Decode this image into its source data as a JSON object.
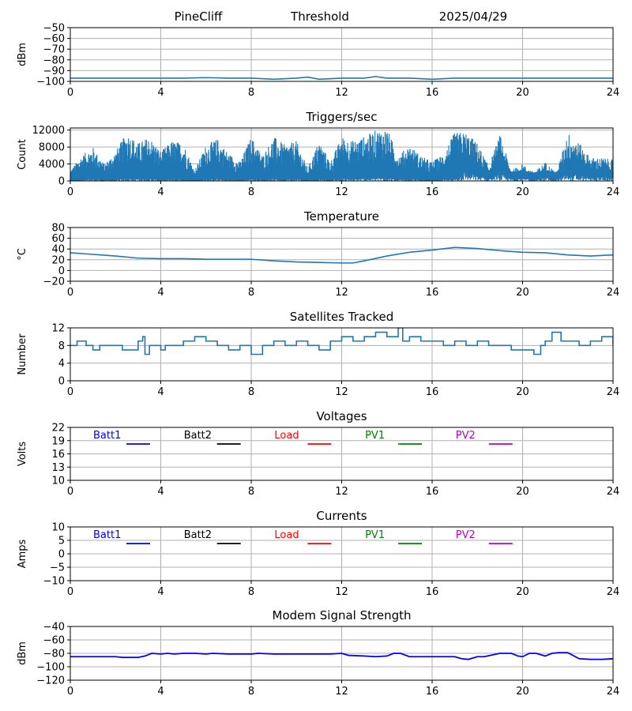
{
  "header": {
    "station": "PineCliff",
    "mode": "Threshold",
    "date": "2025/04/29"
  },
  "colors": {
    "line_default": "#1f77b4",
    "batt1": "#0000ff",
    "batt2": "#000000",
    "load": "#ff0000",
    "pv1": "#008000",
    "pv2": "#bf00bf",
    "modem": "#0000ff",
    "grid": "#b0b0b0"
  },
  "chart_data": [
    {
      "id": "threshold",
      "type": "line",
      "title": "",
      "xlabel": "",
      "ylabel": "dBm",
      "xlim": [
        0,
        24
      ],
      "ylim": [
        -100,
        -50
      ],
      "yticks": [
        -50,
        -60,
        -70,
        -80,
        -90,
        -100
      ],
      "xticks": [
        0,
        4,
        8,
        12,
        16,
        20,
        24
      ],
      "grid": true,
      "series": [
        {
          "color": "#1f77b4",
          "x": [
            0,
            1,
            2,
            3,
            4,
            5,
            6,
            7,
            8,
            9,
            10,
            10.5,
            11,
            12,
            13,
            13.5,
            14,
            15,
            16,
            17,
            18,
            19,
            20,
            21,
            22,
            23,
            24
          ],
          "y": [
            -97,
            -97,
            -97,
            -97,
            -97,
            -97,
            -96.5,
            -97,
            -97,
            -98,
            -97,
            -96,
            -98,
            -97,
            -97,
            -95.5,
            -97,
            -97,
            -98,
            -97,
            -97,
            -97,
            -97,
            -97,
            -97,
            -97,
            -97
          ]
        }
      ]
    },
    {
      "id": "triggers",
      "type": "line",
      "title": "Triggers/sec",
      "xlabel": "",
      "ylabel": "Count",
      "xlim": [
        0,
        24
      ],
      "ylim": [
        0,
        12500
      ],
      "yticks": [
        0,
        4000,
        8000,
        12000
      ],
      "xticks": [
        0,
        4,
        8,
        12,
        16,
        20,
        24
      ],
      "grid": true,
      "series": [
        {
          "color": "#1f77b4",
          "x": [
            0,
            0.5,
            1,
            1.5,
            2,
            2.5,
            3,
            3.5,
            4,
            4.5,
            5,
            5.5,
            6,
            6.5,
            7,
            7.5,
            8,
            8.5,
            9,
            9.5,
            10,
            10.5,
            11,
            11.5,
            12,
            12.5,
            13,
            13.5,
            14,
            14.5,
            15,
            15.5,
            16,
            16.5,
            17,
            17.5,
            18,
            18.5,
            19,
            19.5,
            20,
            20.5,
            21,
            21.5,
            22,
            22.5,
            23,
            23.5,
            24
          ],
          "y": [
            2500,
            6000,
            8000,
            4000,
            7000,
            11500,
            9000,
            10500,
            7000,
            9500,
            9000,
            2500,
            8500,
            10000,
            6500,
            4500,
            10500,
            6000,
            10500,
            8500,
            9500,
            3000,
            9500,
            4500,
            10500,
            9500,
            10500,
            12000,
            12500,
            6000,
            8500,
            6000,
            4500,
            6500,
            11500,
            11500,
            9000,
            3500,
            11000,
            2500,
            4000,
            2000,
            4500,
            2000,
            11500,
            9000,
            5500,
            5500,
            5000
          ],
          "baseline": [
            0,
            200,
            500,
            200,
            300,
            800,
            600,
            500,
            300,
            400,
            300,
            100,
            400,
            500,
            300,
            200,
            600,
            300,
            600,
            400,
            500,
            200,
            500,
            200,
            800,
            500,
            700,
            900,
            800,
            300,
            500,
            300,
            200,
            400,
            500,
            2500,
            1500,
            800,
            2000,
            500,
            800,
            300,
            900,
            400,
            2000,
            1500,
            1000,
            1200,
            1000
          ]
        }
      ]
    },
    {
      "id": "temperature",
      "type": "line",
      "title": "Temperature",
      "xlabel": "",
      "ylabel": "°C",
      "xlim": [
        0,
        24
      ],
      "ylim": [
        -20,
        80
      ],
      "yticks": [
        -20,
        0,
        20,
        40,
        60,
        80
      ],
      "xticks": [
        0,
        4,
        8,
        12,
        16,
        20,
        24
      ],
      "grid": true,
      "series": [
        {
          "color": "#1f77b4",
          "x": [
            0,
            1,
            2,
            3,
            4,
            5,
            6,
            7,
            8,
            9,
            10,
            11,
            12,
            12.5,
            13,
            14,
            15,
            16,
            17,
            18,
            19,
            20,
            21,
            22,
            23,
            24
          ],
          "y": [
            33,
            30,
            27,
            23,
            22,
            22,
            21,
            21,
            21,
            18,
            16,
            15,
            14,
            14,
            18,
            27,
            34,
            38,
            43,
            41,
            37,
            34,
            33,
            29,
            27,
            29
          ]
        }
      ]
    },
    {
      "id": "satellites",
      "type": "line",
      "title": "Satellites Tracked",
      "xlabel": "",
      "ylabel": "Number",
      "xlim": [
        0,
        24
      ],
      "ylim": [
        0,
        12
      ],
      "yticks": [
        0,
        4,
        8,
        12
      ],
      "xticks": [
        0,
        4,
        8,
        12,
        16,
        20,
        24
      ],
      "grid": true,
      "series": [
        {
          "color": "#1f77b4",
          "step": true,
          "x": [
            0,
            0.3,
            0.7,
            1,
            1.3,
            2,
            2.3,
            3,
            3.2,
            3.3,
            3.5,
            4,
            4.2,
            5,
            5.5,
            6,
            6.5,
            7,
            7.5,
            8,
            8.5,
            9,
            9.5,
            10,
            10.5,
            11,
            11.5,
            12,
            12.5,
            13,
            13.5,
            14,
            14.5,
            14.7,
            15,
            15.5,
            16,
            16.5,
            17,
            17.5,
            18,
            18.5,
            19,
            19.5,
            20,
            20.5,
            20.8,
            21,
            21.3,
            21.7,
            22,
            22.5,
            23,
            23.5,
            24
          ],
          "y": [
            8,
            9,
            8,
            7,
            8,
            8,
            7,
            9,
            10,
            6,
            8,
            7,
            8,
            9,
            10,
            9,
            8,
            7,
            8,
            6,
            8,
            9,
            8,
            9,
            8,
            7,
            9,
            10,
            9,
            10,
            11,
            10,
            12,
            9,
            10,
            9,
            9,
            8,
            9,
            8,
            9,
            8,
            8,
            7,
            7,
            6,
            8,
            9,
            11,
            9,
            9,
            8,
            9,
            10,
            8
          ]
        }
      ]
    },
    {
      "id": "voltages",
      "type": "line",
      "title": "Voltages",
      "xlabel": "",
      "ylabel": "Volts",
      "xlim": [
        0,
        24
      ],
      "ylim": [
        10,
        22
      ],
      "yticks": [
        10,
        13,
        16,
        19,
        22
      ],
      "xticks": [
        0,
        4,
        8,
        12,
        16,
        20,
        24
      ],
      "grid": true,
      "legend": [
        {
          "name": "Batt1",
          "color": "#0000ff"
        },
        {
          "name": "Batt2",
          "color": "#000000"
        },
        {
          "name": "Load",
          "color": "#ff0000"
        },
        {
          "name": "PV1",
          "color": "#008000"
        },
        {
          "name": "PV2",
          "color": "#bf00bf"
        }
      ],
      "legend_placement": "top",
      "series": []
    },
    {
      "id": "currents",
      "type": "line",
      "title": "Currents",
      "xlabel": "",
      "ylabel": "Amps",
      "xlim": [
        0,
        24
      ],
      "ylim": [
        -10,
        10
      ],
      "yticks": [
        -10,
        -5,
        0,
        5,
        10
      ],
      "xticks": [
        0,
        4,
        8,
        12,
        16,
        20,
        24
      ],
      "grid": true,
      "legend": [
        {
          "name": "Batt1",
          "color": "#0000ff"
        },
        {
          "name": "Batt2",
          "color": "#000000"
        },
        {
          "name": "Load",
          "color": "#ff0000"
        },
        {
          "name": "PV1",
          "color": "#008000"
        },
        {
          "name": "PV2",
          "color": "#bf00bf"
        }
      ],
      "legend_placement": "top",
      "series": []
    },
    {
      "id": "modem",
      "type": "line",
      "title": "Modem Signal Strength",
      "xlabel": "",
      "ylabel": "dBm",
      "xlim": [
        0,
        24
      ],
      "ylim": [
        -120,
        -40
      ],
      "yticks": [
        -120,
        -100,
        -80,
        -60,
        -40
      ],
      "xticks": [
        0,
        4,
        8,
        12,
        16,
        20,
        24
      ],
      "grid": true,
      "series": [
        {
          "color": "#0000ff",
          "x": [
            0,
            1,
            2,
            2.3,
            3,
            3.3,
            3.6,
            4,
            4.3,
            4.6,
            5,
            5.5,
            6,
            6.3,
            7,
            8,
            8.3,
            9,
            10,
            11,
            11.5,
            12,
            12.3,
            13,
            13.5,
            14,
            14.3,
            14.6,
            15,
            16,
            17,
            17.3,
            17.6,
            18,
            18.3,
            19,
            19.5,
            19.8,
            20,
            20.3,
            20.6,
            21,
            21.3,
            21.6,
            22,
            22.5,
            23,
            23.5,
            24
          ],
          "y": [
            -85,
            -85,
            -85,
            -86,
            -86,
            -84,
            -80,
            -81,
            -80,
            -81,
            -80,
            -80,
            -81,
            -80,
            -81,
            -81,
            -80,
            -81,
            -81,
            -81,
            -81,
            -80,
            -83,
            -84,
            -85,
            -84,
            -80,
            -80,
            -85,
            -85,
            -85,
            -88,
            -89,
            -85,
            -85,
            -80,
            -80,
            -84,
            -85,
            -80,
            -80,
            -84,
            -80,
            -79,
            -79,
            -88,
            -89,
            -89,
            -88
          ]
        }
      ]
    }
  ]
}
